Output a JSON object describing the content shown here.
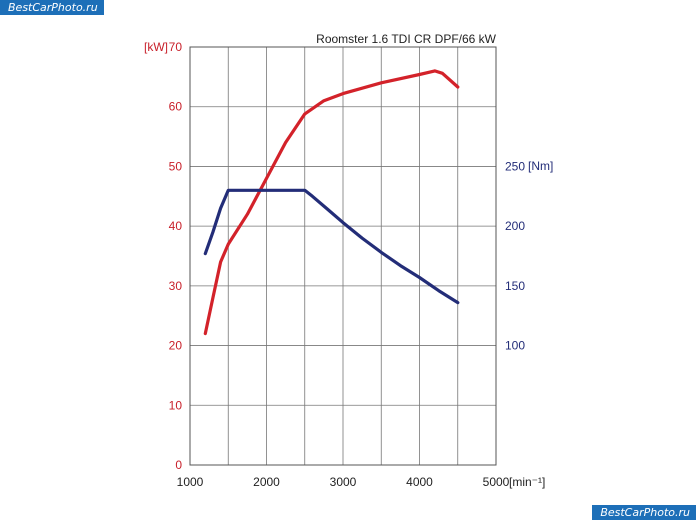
{
  "watermarks": {
    "top": "BestCarPhoto.ru",
    "bottom": "BestCarPhoto.ru"
  },
  "chart_data": {
    "type": "line",
    "title": "Roomster 1.6 TDI CR DPF/66 kW",
    "xlabel": "[min⁻¹]",
    "x_range": [
      1000,
      5000
    ],
    "x_ticks": [
      1000,
      2000,
      3000,
      4000,
      5000
    ],
    "y_left": {
      "label": "[kW]",
      "range": [
        0,
        70
      ],
      "ticks": [
        0,
        10,
        20,
        30,
        40,
        50,
        60,
        70
      ],
      "color": "#c8202a"
    },
    "y_right": {
      "label": "[Nm]",
      "range": [
        0,
        350
      ],
      "ticks": [
        100,
        150,
        200,
        250
      ],
      "color": "#232d78"
    },
    "grid": true,
    "series": [
      {
        "axis": "left",
        "color": "#d3222a",
        "points": [
          [
            1200,
            22
          ],
          [
            1300,
            28
          ],
          [
            1400,
            34
          ],
          [
            1500,
            37
          ],
          [
            1750,
            42
          ],
          [
            2000,
            48
          ],
          [
            2250,
            54
          ],
          [
            2500,
            58.8
          ],
          [
            2750,
            61
          ],
          [
            3000,
            62.2
          ],
          [
            3500,
            64
          ],
          [
            4000,
            65.4
          ],
          [
            4200,
            66
          ],
          [
            4300,
            65.6
          ],
          [
            4500,
            63.3
          ]
        ]
      },
      {
        "axis": "right",
        "color": "#232d78",
        "points": [
          [
            1200,
            177
          ],
          [
            1300,
            195
          ],
          [
            1400,
            215
          ],
          [
            1500,
            230
          ],
          [
            2500,
            230
          ],
          [
            2600,
            225
          ],
          [
            2800,
            214
          ],
          [
            3000,
            203
          ],
          [
            3250,
            190
          ],
          [
            3500,
            178
          ],
          [
            3750,
            167
          ],
          [
            4000,
            157
          ],
          [
            4250,
            146
          ],
          [
            4500,
            136
          ]
        ]
      }
    ]
  }
}
